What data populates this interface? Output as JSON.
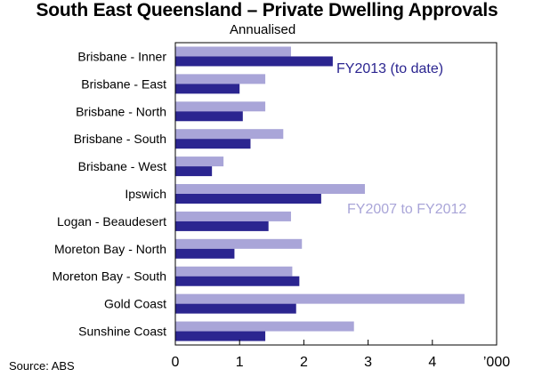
{
  "chart_data": {
    "type": "bar",
    "orientation": "horizontal",
    "title": "South East Queensland – Private Dwelling Approvals",
    "subtitle": "Annualised",
    "source": "Source: ABS",
    "x_unit_label": "’000",
    "xlim": [
      0,
      5
    ],
    "xticks": [
      "0",
      "1",
      "2",
      "3",
      "4"
    ],
    "categories": [
      "Brisbane - Inner",
      "Brisbane - East",
      "Brisbane - North",
      "Brisbane - South",
      "Brisbane - West",
      "Ipswich",
      "Logan - Beaudesert",
      "Moreton Bay - North",
      "Moreton Bay - South",
      "Gold Coast",
      "Sunshine Coast"
    ],
    "series": [
      {
        "name": "FY2007 to FY2012",
        "color": "#a9a5d8",
        "values": [
          1.8,
          1.4,
          1.4,
          1.68,
          0.75,
          2.95,
          1.8,
          1.97,
          1.82,
          4.5,
          2.78
        ]
      },
      {
        "name": "FY2013 (to date)",
        "color": "#2b2590",
        "values": [
          2.45,
          1.0,
          1.05,
          1.17,
          0.57,
          2.27,
          1.45,
          0.92,
          1.93,
          1.88,
          1.4
        ]
      }
    ],
    "annotations": [
      {
        "text": "FY2013 (to date)",
        "series": 1
      },
      {
        "text": "FY2007 to FY2012",
        "series": 0
      }
    ]
  }
}
